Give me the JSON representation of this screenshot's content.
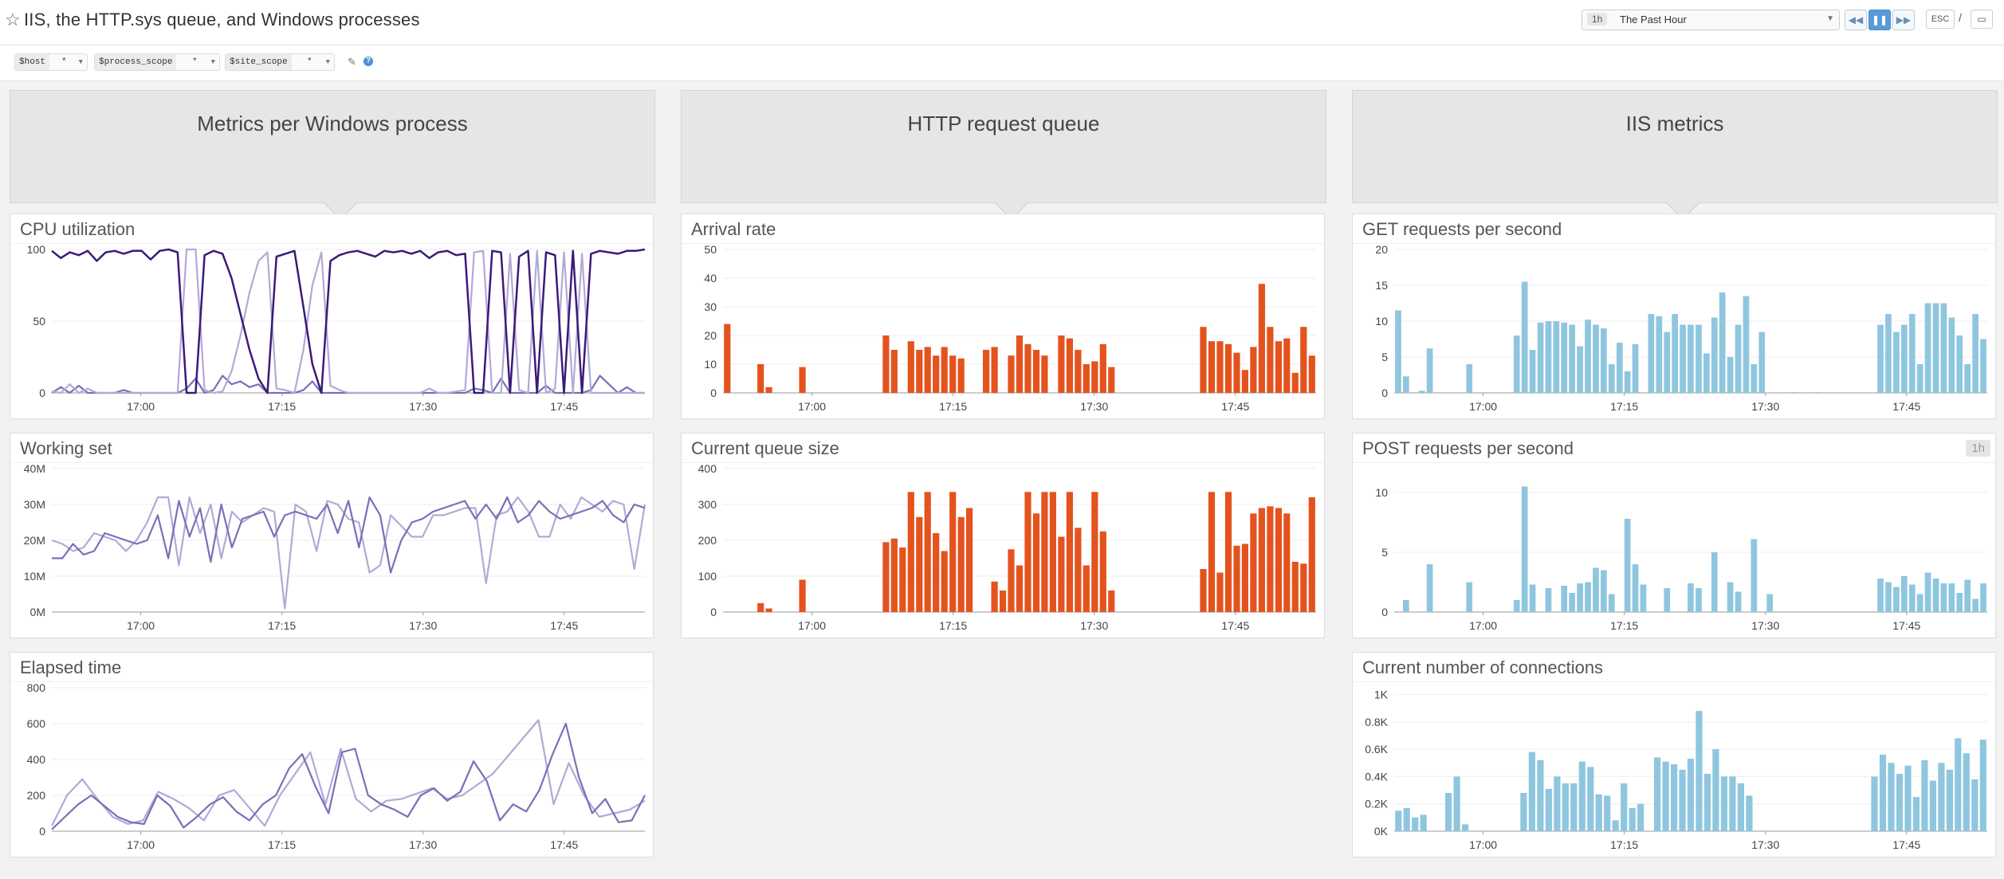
{
  "header": {
    "title": "IIS, the HTTP.sys queue, and Windows processes",
    "timeframe_badge": "1h",
    "timeframe_label": "The Past Hour",
    "esc_label": "ESC",
    "slash": "/"
  },
  "template_vars": [
    {
      "name": "$host",
      "value": "*"
    },
    {
      "name": "$process_scope",
      "value": "*"
    },
    {
      "name": "$site_scope",
      "value": "*"
    }
  ],
  "columns": [
    {
      "title": "Metrics per Windows process"
    },
    {
      "title": "HTTP request queue"
    },
    {
      "title": "IIS metrics"
    }
  ],
  "x_ticks": [
    "17:00",
    "17:15",
    "17:30",
    "17:45"
  ],
  "colors": {
    "purple_dark": "#3c1a78",
    "purple_light": "#b0aad6",
    "purple_mid": "#7a6fb8",
    "orange": "#e4531e",
    "blue": "#8fc6df"
  },
  "widgets": {
    "cpu": {
      "title": "CPU utilization",
      "chart_data": {
        "type": "line",
        "title": "CPU utilization",
        "ylim": [
          0,
          100
        ],
        "yticks": [
          "0",
          "50",
          "100"
        ],
        "series": [
          {
            "values": [
              99,
              94,
              98,
              96,
              99,
              92,
              98,
              99,
              97,
              99,
              99,
              93,
              99,
              100,
              98,
              0,
              0,
              96,
              99,
              97,
              80,
              55,
              30,
              10,
              0,
              95,
              97,
              99,
              60,
              20,
              0,
              92,
              96,
              98,
              99,
              97,
              95,
              99,
              98,
              99,
              97,
              99,
              94,
              98,
              99,
              96,
              97,
              0,
              0,
              99,
              98,
              0,
              95,
              99,
              0,
              98,
              96,
              0,
              99,
              0,
              97,
              99,
              98,
              97,
              99,
              99,
              100
            ]
          },
          {
            "values": [
              1,
              0,
              6,
              0,
              3,
              0,
              0,
              0,
              0,
              0,
              0,
              0,
              0,
              0,
              0,
              100,
              100,
              2,
              0,
              1,
              15,
              40,
              70,
              92,
              98,
              3,
              2,
              0,
              30,
              75,
              98,
              5,
              2,
              0,
              0,
              0,
              0,
              0,
              0,
              0,
              0,
              0,
              3,
              0,
              0,
              1,
              2,
              98,
              99,
              0,
              0,
              97,
              2,
              0,
              99,
              0,
              3,
              98,
              0,
              97,
              0,
              0,
              0,
              0,
              0,
              0,
              0
            ]
          },
          {
            "values": [
              0,
              4,
              0,
              5,
              0,
              0,
              0,
              0,
              2,
              0,
              0,
              0,
              0,
              0,
              0,
              3,
              10,
              0,
              2,
              12,
              6,
              8,
              4,
              6,
              0,
              0,
              0,
              0,
              2,
              8,
              0,
              0,
              0,
              0,
              0,
              0,
              0,
              0,
              0,
              0,
              0,
              0,
              0,
              0,
              0,
              0,
              0,
              3,
              2,
              0,
              10,
              0,
              0,
              0,
              0,
              5,
              0,
              0,
              0,
              0,
              2,
              12,
              6,
              0,
              4,
              0,
              0
            ]
          }
        ]
      }
    },
    "working": {
      "title": "Working set",
      "chart_data": {
        "type": "line",
        "title": "Working set",
        "ylim": [
          0,
          40
        ],
        "yticks": [
          "0M",
          "10M",
          "20M",
          "30M",
          "40M"
        ],
        "series": [
          {
            "values": [
              15,
              15,
              19,
              16,
              17,
              22,
              21,
              20,
              19,
              20,
              27,
              15,
              31,
              21,
              29,
              14,
              30,
              18,
              26,
              27,
              28,
              21,
              27,
              28,
              27,
              26,
              30,
              22,
              31,
              18,
              32,
              27,
              11,
              20,
              25,
              26,
              28,
              29,
              30,
              31,
              26,
              30,
              26,
              32,
              25,
              27,
              31,
              28,
              26,
              27,
              28,
              29,
              31,
              27,
              25,
              30,
              29
            ]
          },
          {
            "values": [
              20,
              19,
              17,
              18,
              22,
              21,
              20,
              17,
              20,
              25,
              32,
              32,
              13,
              32,
              22,
              30,
              15,
              28,
              25,
              27,
              29,
              28,
              1,
              30,
              28,
              17,
              31,
              30,
              26,
              25,
              11,
              13,
              27,
              24,
              21,
              21,
              27,
              27,
              28,
              29,
              29,
              8,
              27,
              28,
              32,
              28,
              21,
              21,
              30,
              26,
              32,
              30,
              28,
              31,
              30,
              12,
              30
            ]
          }
        ]
      }
    },
    "elapsed": {
      "title": "Elapsed time",
      "chart_data": {
        "type": "line",
        "title": "Elapsed time",
        "ylim": [
          0,
          800
        ],
        "yticks": [
          "0",
          "200",
          "400",
          "600",
          "800"
        ],
        "series": [
          {
            "values": [
              10,
              80,
              150,
              200,
              140,
              80,
              50,
              40,
              200,
              140,
              20,
              80,
              150,
              190,
              110,
              60,
              150,
              200,
              350,
              430,
              250,
              100,
              440,
              460,
              200,
              150,
              120,
              80,
              200,
              240,
              170,
              220,
              390,
              280,
              60,
              150,
              110,
              230,
              430,
              600,
              300,
              100,
              180,
              50,
              60,
              200
            ]
          },
          {
            "values": [
              30,
              200,
              290,
              180,
              80,
              40,
              60,
              220,
              180,
              130,
              60,
              200,
              230,
              130,
              30,
              200,
              320,
              440,
              150,
              460,
              180,
              110,
              170,
              180,
              210,
              240,
              180,
              200,
              260,
              320,
              420,
              520,
              620,
              150,
              380,
              200,
              80,
              100,
              120,
              170
            ]
          }
        ]
      }
    },
    "arrival": {
      "title": "Arrival rate",
      "chart_data": {
        "type": "bar",
        "title": "Arrival rate",
        "ylim": [
          0,
          50
        ],
        "yticks": [
          "0",
          "10",
          "20",
          "30",
          "40",
          "50"
        ],
        "values": [
          24,
          0,
          0,
          0,
          10,
          2,
          0,
          0,
          0,
          9,
          0,
          0,
          0,
          0,
          0,
          0,
          0,
          0,
          0,
          20,
          15,
          0,
          18,
          15,
          16,
          13,
          16,
          13,
          12,
          0,
          0,
          15,
          16,
          0,
          13,
          20,
          17,
          15,
          13,
          0,
          20,
          19,
          15,
          10,
          11,
          17,
          9,
          0,
          0,
          0,
          0,
          0,
          0,
          0,
          0,
          0,
          0,
          23,
          18,
          18,
          17,
          14,
          8,
          16,
          38,
          23,
          18,
          19,
          7,
          23,
          13
        ]
      }
    },
    "queue": {
      "title": "Current queue size",
      "chart_data": {
        "type": "bar",
        "title": "Current queue size",
        "ylim": [
          0,
          400
        ],
        "yticks": [
          "0",
          "100",
          "200",
          "300",
          "400"
        ],
        "values": [
          0,
          0,
          0,
          0,
          25,
          10,
          0,
          0,
          0,
          90,
          0,
          0,
          0,
          0,
          0,
          0,
          0,
          0,
          0,
          195,
          205,
          180,
          335,
          265,
          335,
          220,
          170,
          335,
          265,
          290,
          0,
          0,
          85,
          60,
          175,
          130,
          335,
          275,
          335,
          335,
          210,
          335,
          235,
          130,
          335,
          225,
          60,
          0,
          0,
          0,
          0,
          0,
          0,
          0,
          0,
          0,
          0,
          120,
          335,
          110,
          335,
          185,
          190,
          275,
          290,
          295,
          290,
          275,
          140,
          135,
          320
        ]
      }
    },
    "get": {
      "title": "GET requests per second",
      "chart_data": {
        "type": "bar",
        "title": "GET requests per second",
        "ylim": [
          0,
          20
        ],
        "yticks": [
          "0",
          "5",
          "10",
          "15",
          "20"
        ],
        "values": [
          11.5,
          2.3,
          0,
          0.3,
          6.2,
          0,
          0,
          0,
          0,
          4,
          0,
          0,
          0,
          0,
          0,
          8,
          15.5,
          6,
          9.8,
          10,
          10,
          9.8,
          9.5,
          6.5,
          10.2,
          9.5,
          9,
          4,
          7,
          3,
          6.8,
          0,
          11,
          10.7,
          8.5,
          11,
          9.5,
          9.5,
          9.5,
          5.5,
          10.5,
          14,
          5,
          9.5,
          13.5,
          4,
          8.5,
          0,
          0,
          0,
          0.1,
          0,
          0,
          0.1,
          0,
          0,
          0,
          0,
          0,
          0,
          0,
          9.5,
          11,
          8.5,
          9.5,
          11,
          4,
          12.5,
          12.5,
          12.5,
          10.5,
          8,
          4,
          11,
          7.5
        ]
      }
    },
    "post": {
      "title": "POST requests per second",
      "badge": "1h",
      "chart_data": {
        "type": "bar",
        "title": "POST requests per second",
        "ylim": [
          0,
          12
        ],
        "yticks": [
          "0",
          "5",
          "10"
        ],
        "values": [
          0,
          1,
          0,
          0,
          4,
          0,
          0,
          0,
          0,
          2.5,
          0,
          0,
          0,
          0,
          0,
          1,
          10.5,
          2.3,
          0,
          2,
          0,
          2.2,
          1.6,
          2.4,
          2.5,
          3.7,
          3.5,
          1.5,
          0,
          7.8,
          4,
          2.3,
          0,
          0,
          2,
          0,
          0,
          2.4,
          2,
          0,
          5,
          0,
          2.5,
          1.7,
          0,
          6.1,
          0,
          1.5,
          0,
          0,
          0,
          0,
          0,
          0,
          0,
          0,
          0,
          0,
          0,
          0,
          0,
          2.8,
          2.5,
          2.1,
          3,
          2.3,
          1.5,
          3.3,
          2.8,
          2.4,
          2.4,
          1.6,
          2.7,
          1.1,
          2.4
        ]
      }
    },
    "conns": {
      "title": "Current number of connections",
      "chart_data": {
        "type": "bar",
        "title": "Current number of connections",
        "ylim": [
          0,
          1050
        ],
        "yticks": [
          "0K",
          "0.2K",
          "0.4K",
          "0.6K",
          "0.8K",
          "1K"
        ],
        "values": [
          150,
          170,
          100,
          120,
          0,
          0,
          280,
          400,
          50,
          0,
          0,
          0,
          0,
          0,
          0,
          280,
          580,
          520,
          310,
          400,
          350,
          350,
          510,
          470,
          270,
          260,
          80,
          350,
          170,
          200,
          0,
          540,
          510,
          490,
          450,
          530,
          880,
          420,
          600,
          400,
          400,
          350,
          260,
          0,
          0,
          0,
          0,
          0,
          0,
          0,
          0,
          0,
          0,
          0,
          0,
          0,
          0,
          400,
          560,
          500,
          420,
          480,
          250,
          520,
          370,
          500,
          450,
          680,
          570,
          380,
          670
        ]
      }
    }
  }
}
